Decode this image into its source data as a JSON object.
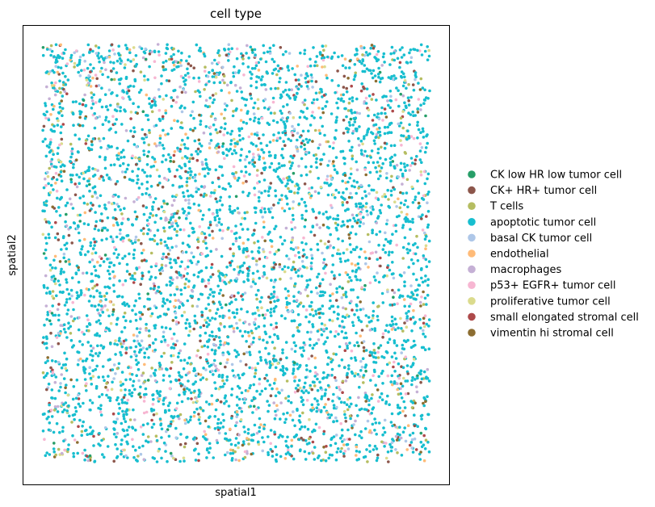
{
  "chart_data": {
    "type": "scatter",
    "title": "cell type",
    "xlabel": "spatial1",
    "ylabel": "spatial2",
    "grid": false,
    "ticks_visible": false,
    "legend_placement": "right",
    "xlim": [
      0,
      100
    ],
    "ylim": [
      0,
      100
    ],
    "categories": [
      {
        "name": "CK low HR low tumor cell",
        "color": "#279e68",
        "share": 0.01
      },
      {
        "name": "CK+ HR+ tumor cell",
        "color": "#8c564b",
        "share": 0.025
      },
      {
        "name": "T cells",
        "color": "#b5bd61",
        "share": 0.045
      },
      {
        "name": "apoptotic tumor cell",
        "color": "#17becf",
        "share": 0.68
      },
      {
        "name": "basal CK tumor cell",
        "color": "#aec7e8",
        "share": 0.055
      },
      {
        "name": "endothelial",
        "color": "#ffbb78",
        "share": 0.03
      },
      {
        "name": "macrophages",
        "color": "#c5b0d5",
        "share": 0.045
      },
      {
        "name": "p53+ EGFR+ tumor cell",
        "color": "#f7b6d2",
        "share": 0.04
      },
      {
        "name": "proliferative tumor cell",
        "color": "#dbdb8d",
        "share": 0.03
      },
      {
        "name": "small elongated stromal cell",
        "color": "#ad494a",
        "share": 0.02
      },
      {
        "name": "vimentin hi stromal cell",
        "color": "#8c6d31",
        "share": 0.02
      }
    ],
    "point_count": 5200,
    "cell_region": {
      "x": [
        0,
        100
      ],
      "y": [
        0,
        100
      ]
    }
  }
}
